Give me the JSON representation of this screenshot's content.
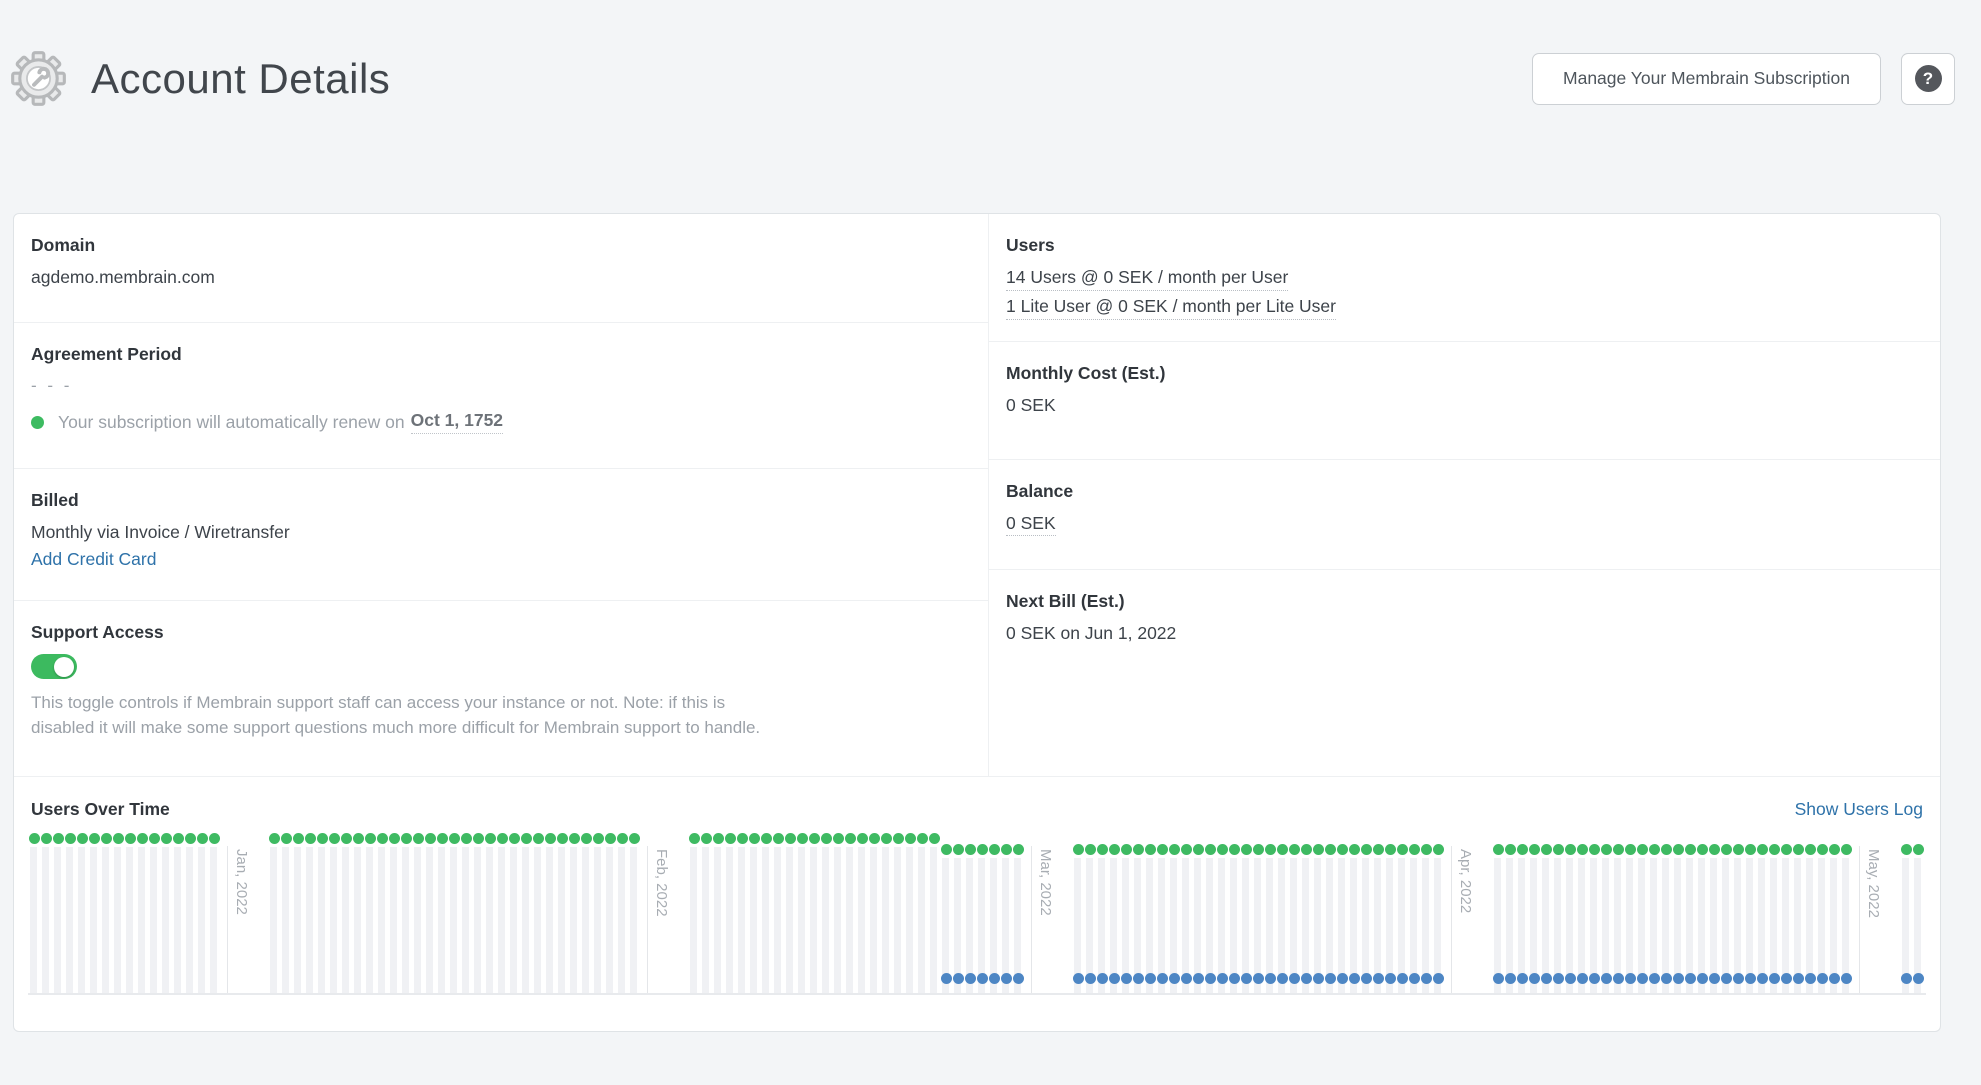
{
  "header": {
    "title": "Account Details",
    "manage_button": "Manage Your Membrain Subscription",
    "help_label": "?"
  },
  "account": {
    "domain": {
      "label": "Domain",
      "value": "agdemo.membrain.com"
    },
    "agreement": {
      "label": "Agreement Period",
      "placeholder": "- - -",
      "renewal_prefix": "Your subscription will automatically renew on",
      "renewal_date": "Oct 1, 1752",
      "status_color": "#3dbb61"
    },
    "billed": {
      "label": "Billed",
      "value": "Monthly via Invoice / Wiretransfer",
      "add_card_link": "Add Credit Card"
    },
    "support": {
      "label": "Support Access",
      "enabled": true,
      "description": "This toggle controls if Membrain support staff can access your instance or not. Note: if this is disabled it will make some support questions much more difficult for Membrain support to handle."
    },
    "users": {
      "label": "Users",
      "lines": [
        "14 Users @ 0 SEK / month per User",
        "1 Lite User @ 0 SEK / month per Lite User"
      ]
    },
    "monthly_cost": {
      "label": "Monthly Cost (Est.)",
      "value": "0 SEK"
    },
    "balance": {
      "label": "Balance",
      "value": "0 SEK"
    },
    "next_bill": {
      "label": "Next Bill (Est.)",
      "value": "0 SEK on Jun 1, 2022"
    }
  },
  "chart_section": {
    "title": "Users Over Time",
    "log_link": "Show Users Log"
  },
  "chart_data": {
    "type": "scatter",
    "title": "Users Over Time",
    "x_unit": "day",
    "y_max": 15,
    "series_colors": {
      "users": "#3eba62",
      "lite_users": "#4d86c4",
      "column": "#f0f1f4"
    },
    "months": [
      {
        "label": null,
        "segments": [
          {
            "users": 15,
            "lite_users": 0,
            "days": 16
          }
        ]
      },
      {
        "label": "Jan, 2022",
        "segments": [
          {
            "users": 15,
            "lite_users": 0,
            "days": 31
          }
        ]
      },
      {
        "label": "Feb, 2022",
        "segments": [
          {
            "users": 15,
            "lite_users": 0,
            "days": 21
          },
          {
            "users": 14,
            "lite_users": 1,
            "days": 7
          }
        ]
      },
      {
        "label": "Mar, 2022",
        "segments": [
          {
            "users": 14,
            "lite_users": 1,
            "days": 31
          }
        ]
      },
      {
        "label": "Apr, 2022",
        "segments": [
          {
            "users": 14,
            "lite_users": 1,
            "days": 30
          }
        ]
      },
      {
        "label": "May, 2022",
        "segments": [
          {
            "users": 14,
            "lite_users": 1,
            "days": 2
          }
        ]
      }
    ]
  }
}
